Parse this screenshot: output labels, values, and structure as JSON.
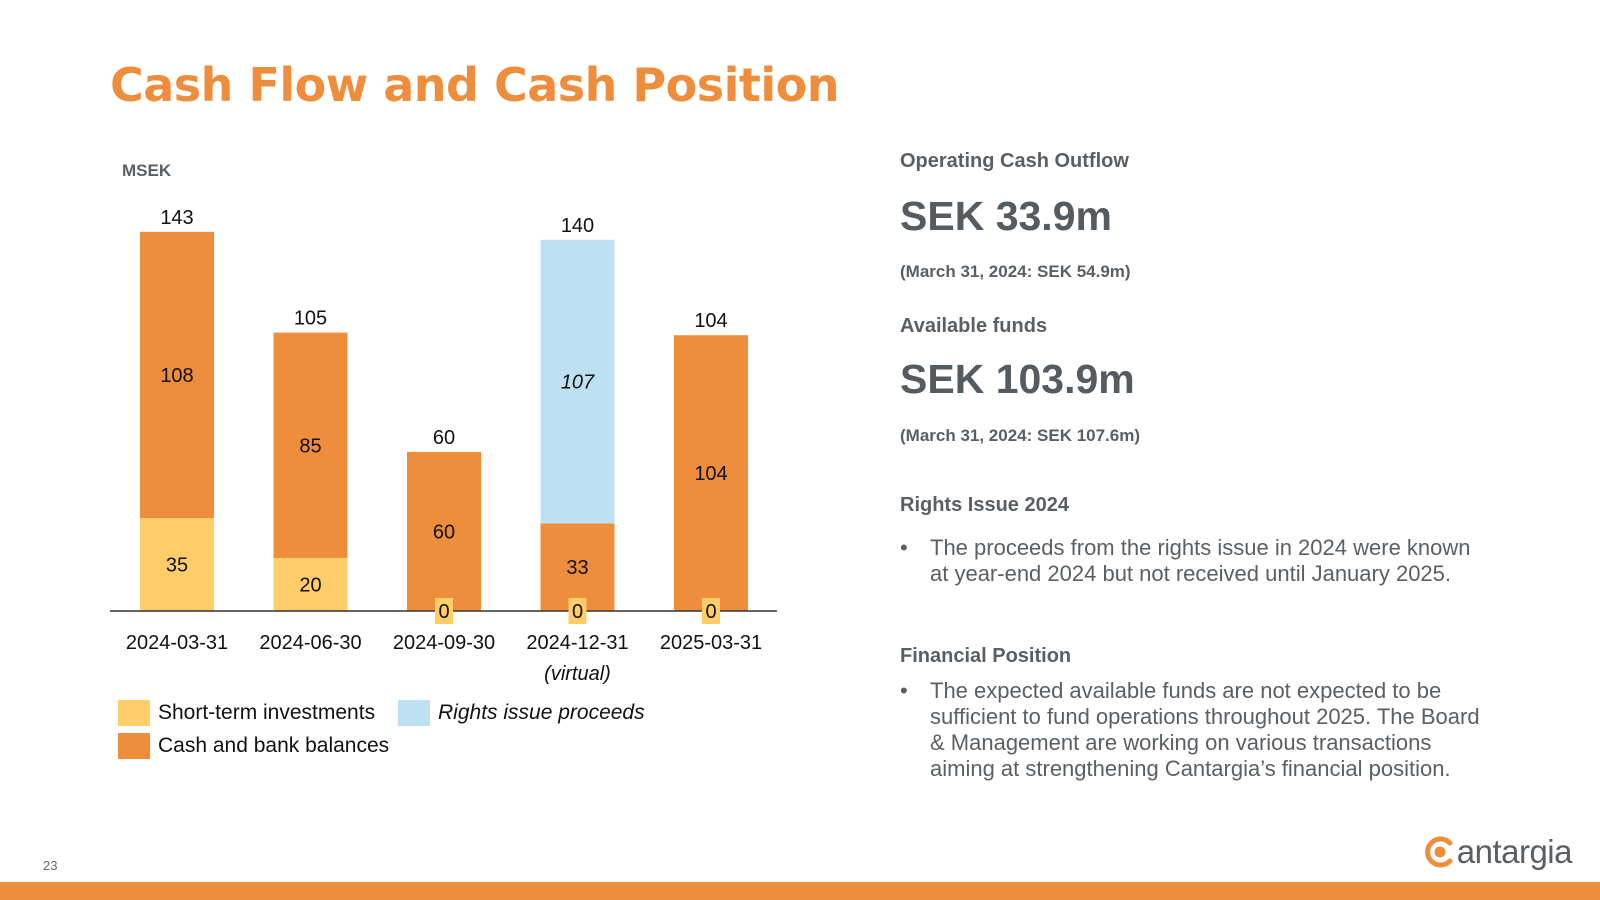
{
  "slide": {
    "title": "Cash Flow and Cash Position",
    "page_number": "23",
    "logo_text": "antargia"
  },
  "chart_data": {
    "type": "bar",
    "stacked": true,
    "ylabel": "MSEK",
    "categories": [
      "2024-03-31",
      "2024-06-30",
      "2024-09-30",
      "2024-12-31",
      "2025-03-31"
    ],
    "category_sublabels": [
      "",
      "",
      "",
      "(virtual)",
      ""
    ],
    "series": [
      {
        "name": "Short-term investments",
        "values": [
          35,
          20,
          0,
          0,
          0
        ],
        "color": "#FECD6A",
        "label_style": "normal"
      },
      {
        "name": "Cash and bank balances",
        "values": [
          108,
          85,
          60,
          33,
          104
        ],
        "color": "#EE8E3C",
        "label_style": "normal"
      },
      {
        "name": "Rights issue proceeds",
        "values": [
          0,
          0,
          0,
          107,
          0
        ],
        "color": "#BDE0F3",
        "label_style": "italic"
      }
    ],
    "totals": [
      143,
      105,
      60,
      140,
      104
    ],
    "ylim": [
      0,
      155
    ],
    "grid": false,
    "legend_position": "bottom-left"
  },
  "right_panel": {
    "operating_heading": "Operating Cash Outflow",
    "operating_value": "SEK 33.9m",
    "operating_note": "(March 31, 2024: SEK 54.9m)",
    "funds_heading": "Available funds",
    "funds_value": "SEK 103.9m",
    "funds_note": "(March 31, 2024: SEK 107.6m)",
    "rights_heading": "Rights Issue 2024",
    "rights_bullet": "The proceeds from the rights issue in 2024 were known at year-end 2024 but not received until January 2025.",
    "financial_heading": "Financial Position",
    "financial_bullet": "The expected available funds are not expected to be sufficient to fund operations throughout 2025. The Board & Management are working on various transactions aiming at strengthening Cantargia’s financial position.",
    "bullet_glyph": "•"
  },
  "colors": {
    "accent": "#EE8E3C",
    "short_term": "#FECD6A",
    "rights": "#BDE0F3",
    "text_grey": "#5a5f63"
  }
}
